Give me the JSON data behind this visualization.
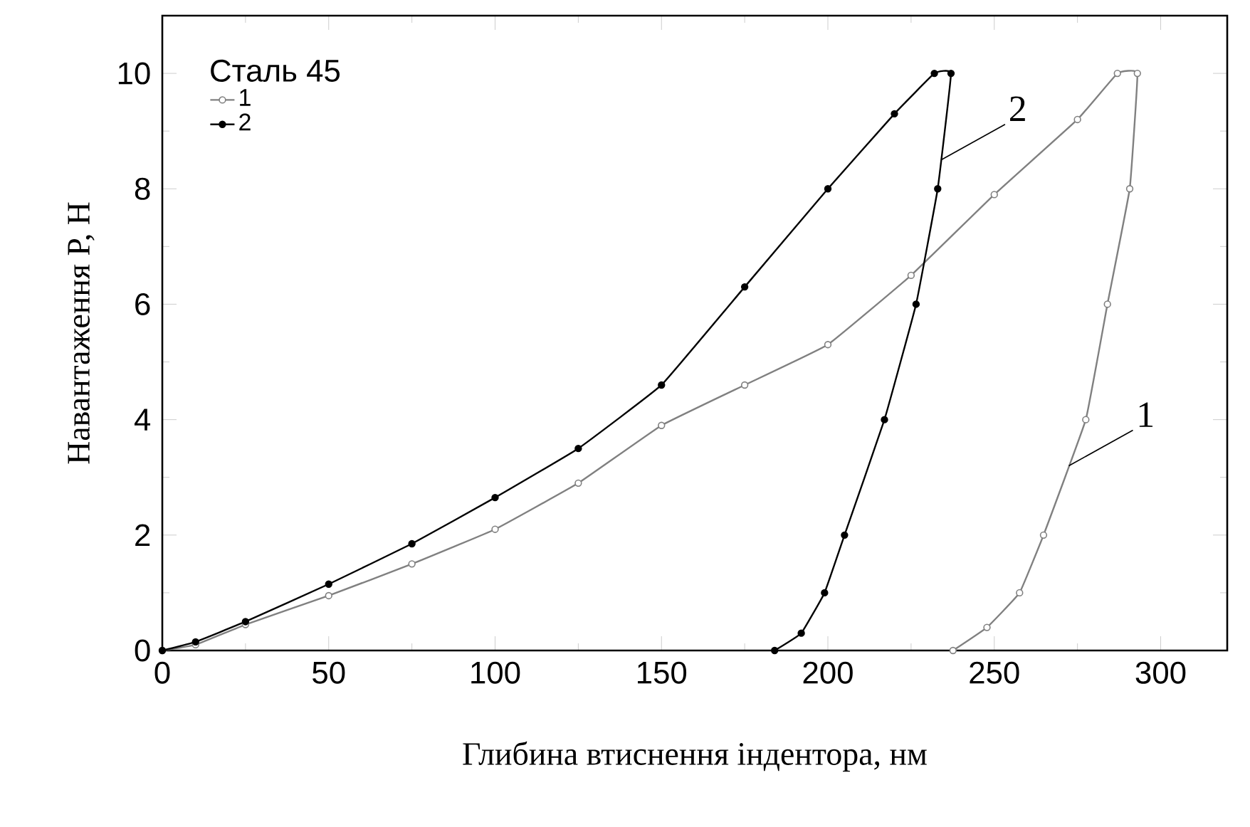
{
  "chart_data": {
    "type": "line",
    "xlabel": "Глибина втиснення індентора, нм",
    "ylabel": "Навантаження P, Н",
    "legend_title": "Сталь 45",
    "xlim": [
      0,
      320
    ],
    "ylim": [
      0,
      11
    ],
    "xticks": [
      0,
      50,
      100,
      150,
      200,
      250,
      300
    ],
    "yticks": [
      0,
      2,
      4,
      6,
      8,
      10
    ],
    "legend": "top left",
    "marker": "circle",
    "grid": false,
    "series": [
      {
        "name": "1",
        "color": "#808080",
        "x": [
          0,
          10,
          25,
          50,
          75,
          100,
          125,
          150,
          175,
          200,
          225,
          250,
          275,
          287,
          293,
          290.7,
          284,
          277.5,
          264.8,
          257.6,
          247.8,
          237.6
        ],
        "values": [
          0,
          0.1,
          0.45,
          0.95,
          1.5,
          2.1,
          2.9,
          3.9,
          4.6,
          5.3,
          6.5,
          7.9,
          9.2,
          10,
          10,
          8,
          6,
          4,
          2,
          1,
          0.4,
          0
        ]
      },
      {
        "name": "2",
        "color": "#000000",
        "x": [
          0,
          10,
          25,
          50,
          75,
          100,
          125,
          150,
          175,
          200,
          220,
          232,
          237,
          233,
          226.5,
          217,
          205,
          199,
          192,
          184
        ],
        "values": [
          0,
          0.15,
          0.5,
          1.15,
          1.85,
          2.65,
          3.5,
          4.6,
          6.3,
          8.0,
          9.3,
          10,
          10,
          8,
          6,
          4,
          2,
          1,
          0.3,
          0
        ]
      }
    ],
    "annotations": [
      {
        "text": "2",
        "x": 234,
        "y": 8.5
      },
      {
        "text": "1",
        "x": 272.4,
        "y": 3.2
      }
    ]
  }
}
